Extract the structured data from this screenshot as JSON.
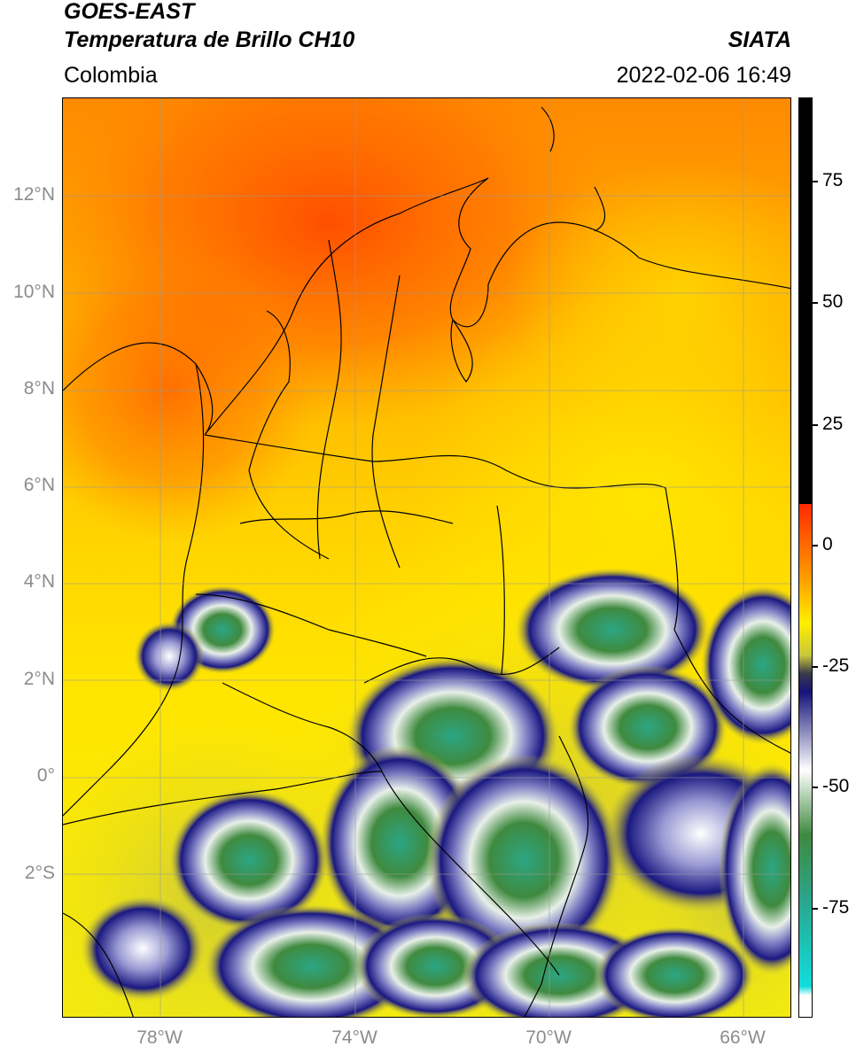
{
  "header": {
    "satellite": "GOES-EAST",
    "product": "Temperatura de Brillo CH10",
    "region": "Colombia",
    "agency": "SIATA",
    "datetime": "2022-02-06 16:49"
  },
  "map": {
    "lat_labels": [
      "12°N",
      "10°N",
      "8°N",
      "6°N",
      "4°N",
      "2°N",
      "0°",
      "2°S"
    ],
    "lon_labels": [
      "78°W",
      "74°W",
      "70°W",
      "66°W"
    ],
    "lat_range": [
      -4.9,
      14.1
    ],
    "lon_range": [
      -80.0,
      -65.0
    ],
    "gridlines": true
  },
  "colorbar": {
    "ticks": [
      "75",
      "50",
      "25",
      "0",
      "-25",
      "-50",
      "-75"
    ],
    "range": [
      -95,
      90
    ],
    "colors": {
      "black": "#000000",
      "red": "#ff2a00",
      "orange": "#ff9a00",
      "yellow": "#ffee00",
      "olive": "#c9c83a",
      "navy": "#15137a",
      "white": "#ffffff",
      "green": "#3f8a3f",
      "teal": "#2aa58a",
      "cyan": "#11dddd"
    }
  }
}
